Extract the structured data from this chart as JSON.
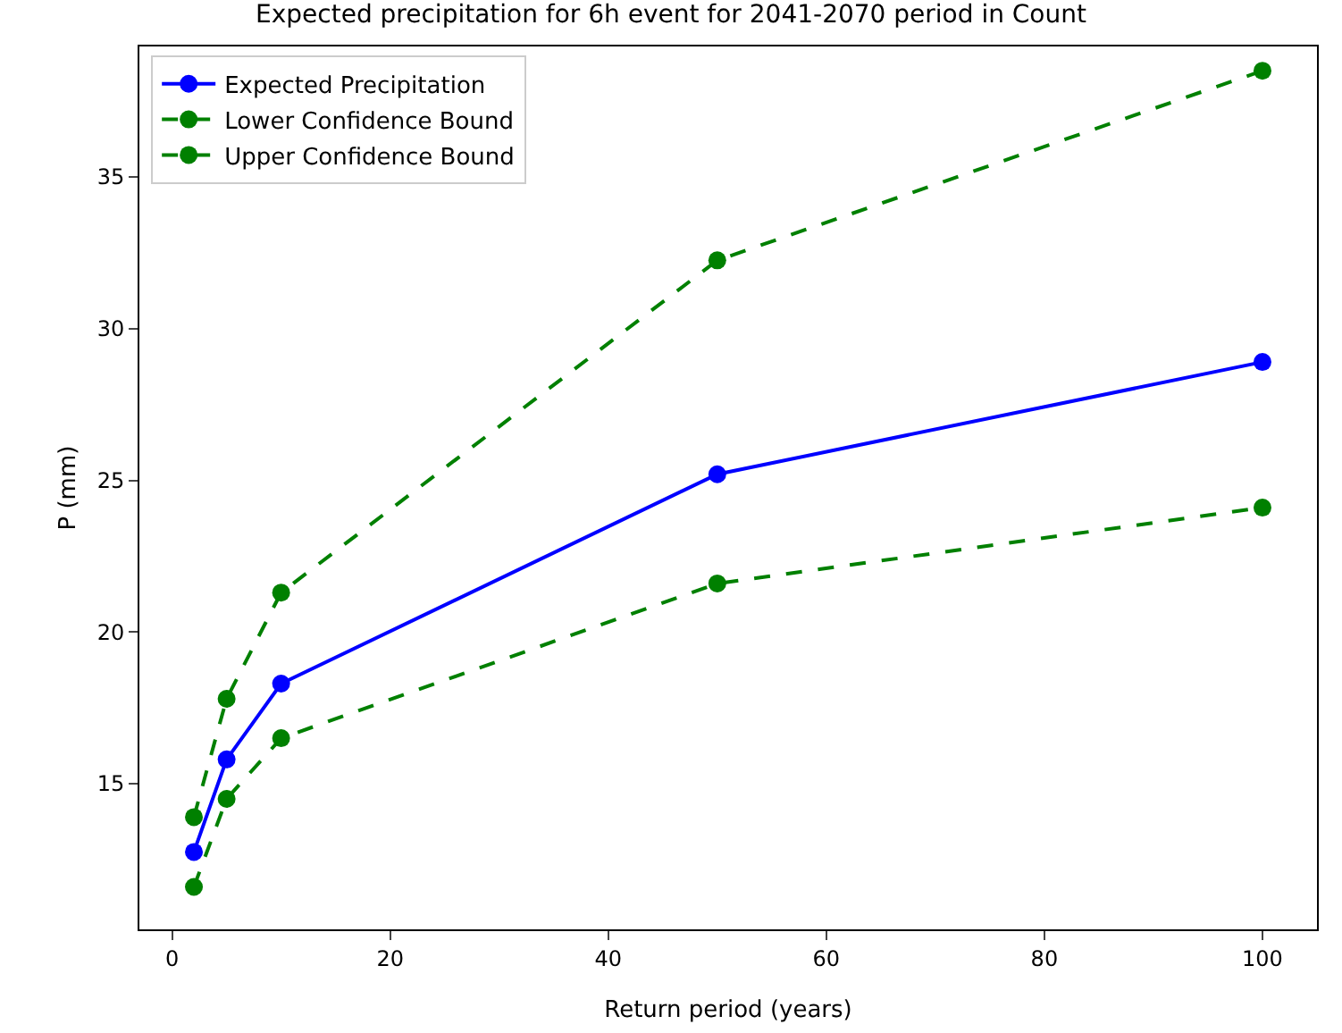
{
  "chart_data": {
    "type": "line",
    "title": "Expected precipitation for 6h event for 2041-2070 period in Count",
    "xlabel": "Return period (years)",
    "ylabel": "P (mm)",
    "x": [
      2,
      5,
      10,
      50,
      100
    ],
    "series": [
      {
        "name": "Expected Precipitation",
        "color": "#0000ff",
        "line_style": "solid",
        "values": [
          12.75,
          15.8,
          18.3,
          25.2,
          28.9
        ]
      },
      {
        "name": "Lower Confidence Bound",
        "color": "#008000",
        "line_style": "dashed",
        "values": [
          11.6,
          14.5,
          16.5,
          21.6,
          24.1
        ]
      },
      {
        "name": "Upper Confidence Bound",
        "color": "#008000",
        "line_style": "dashed",
        "values": [
          13.9,
          17.8,
          21.3,
          32.25,
          38.5
        ]
      }
    ],
    "marker": "circle",
    "xlim": [
      -3,
      105
    ],
    "ylim": [
      10.2,
      39.3
    ],
    "xticks": [
      0,
      20,
      40,
      60,
      80,
      100
    ],
    "yticks": [
      15,
      20,
      25,
      30,
      35
    ],
    "grid": false,
    "legend": "top left"
  }
}
